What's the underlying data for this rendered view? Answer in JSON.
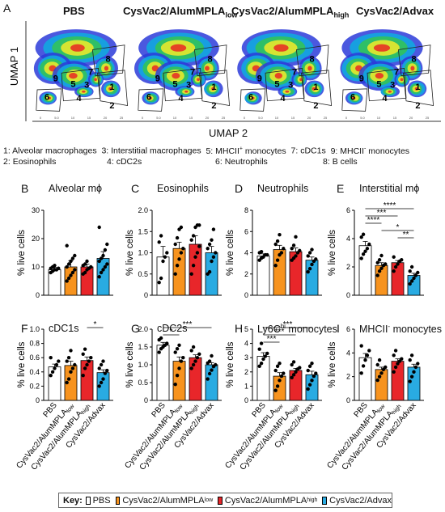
{
  "figure": {
    "panel_a_letter": "A",
    "umap": {
      "y_label": "UMAP 1",
      "x_label": "UMAP 2",
      "titles": [
        {
          "main": "PBS",
          "sub": ""
        },
        {
          "main": "CysVac2/AlumMPLA",
          "sub": "low"
        },
        {
          "main": "CysVac2/AlumMPLA",
          "sub": "high"
        },
        {
          "main": "CysVac2/Advax",
          "sub": ""
        }
      ],
      "cluster_labels": [
        "1",
        "2",
        "3",
        "4",
        "5",
        "6",
        "7",
        "8",
        "9"
      ],
      "tick_labels": [
        "0",
        "5.0",
        "10",
        "15",
        "20",
        "25"
      ]
    },
    "cluster_legend": {
      "row1": [
        {
          "num": "1:",
          "text": "Alveolar macrophages"
        },
        {
          "num": "3:",
          "text": "Interstitial macrophages"
        },
        {
          "num": "5:",
          "text": "MHCII",
          "sup": "+",
          "after": " monocytes"
        },
        {
          "num": "7:",
          "text": "cDC1s"
        },
        {
          "num": "9:",
          "text": "MHCII",
          "sup": "-",
          "after": " monocytes"
        }
      ],
      "row2": [
        {
          "num": "2:",
          "text": "Eosinophils"
        },
        {
          "num": "4:",
          "text": "cDC2s"
        },
        {
          "num": "6:",
          "text": "Neutrophils"
        },
        {
          "num": "8:",
          "text": "B cells"
        }
      ]
    },
    "key": {
      "label": "Key:",
      "entries": [
        {
          "main": "PBS",
          "sub": "",
          "color": "#ffffff"
        },
        {
          "main": "CysVac2/AlumMPLA",
          "sub": "low",
          "color": "#f7931e"
        },
        {
          "main": "CysVac2/AlumMPLA",
          "sub": "high",
          "color": "#e8262a"
        },
        {
          "main": "CysVac2/Advax",
          "sub": "",
          "color": "#29abe2"
        }
      ]
    },
    "colors": {
      "pbs": "#ffffff",
      "alum_low": "#f7931e",
      "alum_high": "#e8262a",
      "advax": "#29abe2"
    }
  },
  "chart_data": [
    {
      "letter": "B",
      "title": "Alveolar mϕ",
      "type": "bar",
      "ylabel": "% live cells",
      "ylim": [
        0,
        30
      ],
      "yticks": [
        "0",
        "10",
        "20",
        "30"
      ],
      "categories": [
        "PBS",
        "CysVac2/AlumMPLA_low",
        "CysVac2/AlumMPLA_high",
        "CysVac2/Advax"
      ],
      "values": [
        9,
        10,
        10,
        13
      ],
      "errors": [
        0.8,
        2.2,
        1,
        2.4
      ],
      "points": [
        [
          8,
          8.5,
          9,
          9,
          9.5,
          9.5,
          10,
          10.5
        ],
        [
          5,
          6,
          7,
          8,
          9,
          10,
          11,
          12,
          13,
          14,
          17.5
        ],
        [
          7.5,
          8,
          9,
          9.5,
          10,
          10.5,
          11,
          12
        ],
        [
          6.5,
          8,
          9,
          10,
          11,
          12,
          13,
          14,
          16,
          18,
          24
        ]
      ],
      "significance": []
    },
    {
      "letter": "C",
      "title": "Eosinophils",
      "type": "bar",
      "ylabel": "% live cells",
      "ylim": [
        0,
        2.0
      ],
      "yticks": [
        "0",
        "0.5",
        "1.0",
        "1.5",
        "2.0"
      ],
      "categories": [
        "PBS",
        "CysVac2/AlumMPLA_low",
        "CysVac2/AlumMPLA_high",
        "CysVac2/Advax"
      ],
      "values": [
        0.9,
        1.1,
        1.2,
        1.0
      ],
      "errors": [
        0.25,
        0.15,
        0.2,
        0.15
      ],
      "points": [
        [
          0.3,
          0.4,
          0.8,
          0.9,
          1.0,
          1.25,
          1.4
        ],
        [
          0.5,
          0.7,
          0.85,
          1.0,
          1.1,
          1.2,
          1.35,
          1.55,
          1.6
        ],
        [
          0.5,
          0.7,
          0.9,
          1.0,
          1.15,
          1.3,
          1.4,
          1.6,
          1.65,
          1.65
        ],
        [
          0.5,
          0.55,
          0.8,
          0.9,
          1.0,
          1.1,
          1.2,
          1.3,
          1.55
        ]
      ],
      "significance": []
    },
    {
      "letter": "D",
      "title": "Neutrophils",
      "type": "bar",
      "ylabel": "% live cells",
      "ylim": [
        0,
        8
      ],
      "yticks": [
        "0",
        "2",
        "4",
        "6",
        "8"
      ],
      "categories": [
        "PBS",
        "CysVac2/AlumMPLA_low",
        "CysVac2/AlumMPLA_high",
        "CysVac2/Advax"
      ],
      "values": [
        3.7,
        4.3,
        4.1,
        3.3
      ],
      "errors": [
        0.2,
        0.4,
        0.35,
        0.3
      ],
      "points": [
        [
          3.3,
          3.5,
          3.6,
          3.8,
          3.8,
          4.0,
          4.1
        ],
        [
          2.8,
          3.3,
          3.8,
          4.0,
          4.4,
          4.8,
          5.1,
          5.7
        ],
        [
          3.3,
          3.5,
          3.7,
          4.0,
          4.2,
          4.4,
          4.7,
          5.5
        ],
        [
          2.2,
          2.5,
          2.9,
          3.2,
          3.4,
          3.7,
          4.0,
          4.3
        ]
      ],
      "significance": []
    },
    {
      "letter": "E",
      "title": "Interstitial mϕ",
      "type": "bar",
      "ylabel": "% live cells",
      "ylim": [
        0,
        6
      ],
      "yticks": [
        "0",
        "2",
        "4",
        "6"
      ],
      "categories": [
        "PBS",
        "CysVac2/AlumMPLA_low",
        "CysVac2/AlumMPLA_high",
        "CysVac2/Advax"
      ],
      "values": [
        3.5,
        2.1,
        2.3,
        1.4
      ],
      "errors": [
        0.3,
        0.2,
        0.15,
        0.15
      ],
      "points": [
        [
          2.6,
          2.9,
          3.1,
          3.3,
          3.6,
          4.1,
          4.3
        ],
        [
          1.4,
          1.7,
          1.9,
          2.1,
          2.2,
          2.3,
          2.5,
          2.8
        ],
        [
          1.7,
          2.0,
          2.2,
          2.4,
          2.5,
          2.7
        ],
        [
          0.8,
          1.0,
          1.2,
          1.4,
          1.6,
          1.7,
          2.0
        ]
      ],
      "significance": [
        {
          "from": 0,
          "to": 3,
          "label": "****"
        },
        {
          "from": 0,
          "to": 2,
          "label": "***"
        },
        {
          "from": 0,
          "to": 1,
          "label": "****"
        },
        {
          "from": 1,
          "to": 3,
          "label": "*"
        },
        {
          "from": 2,
          "to": 3,
          "label": "**"
        }
      ]
    },
    {
      "letter": "F",
      "title": "cDC1s",
      "type": "bar",
      "ylabel": "% live cells",
      "ylim": [
        0,
        1.0
      ],
      "yticks": [
        "0",
        "0.2",
        "0.4",
        "0.6",
        "0.8",
        "1.0"
      ],
      "categories": [
        "PBS",
        "CysVac2/AlumMPLA_low",
        "CysVac2/AlumMPLA_high",
        "CysVac2/Advax"
      ],
      "values": [
        0.47,
        0.49,
        0.56,
        0.39
      ],
      "errors": [
        0.04,
        0.06,
        0.05,
        0.04
      ],
      "points": [
        [
          0.35,
          0.4,
          0.45,
          0.5,
          0.55,
          0.6
        ],
        [
          0.25,
          0.3,
          0.4,
          0.45,
          0.5,
          0.55,
          0.6,
          0.7
        ],
        [
          0.35,
          0.45,
          0.5,
          0.55,
          0.6,
          0.65,
          0.72
        ],
        [
          0.2,
          0.25,
          0.3,
          0.38,
          0.42,
          0.45,
          0.5,
          0.55
        ]
      ],
      "significance": [
        {
          "from": 2,
          "to": 3,
          "label": "*"
        }
      ]
    },
    {
      "letter": "G",
      "title": "cDC2s",
      "type": "bar",
      "ylabel": "% live cells",
      "ylim": [
        0,
        2.0
      ],
      "yticks": [
        "0",
        "0.5",
        "1.0",
        "1.5",
        "2.0"
      ],
      "categories": [
        "PBS",
        "CysVac2/AlumMPLA_low",
        "CysVac2/AlumMPLA_high",
        "CysVac2/Advax"
      ],
      "values": [
        1.55,
        1.1,
        1.2,
        1.0
      ],
      "errors": [
        0.08,
        0.12,
        0.08,
        0.06
      ],
      "points": [
        [
          1.35,
          1.45,
          1.5,
          1.55,
          1.6,
          1.7,
          1.75
        ],
        [
          0.45,
          0.7,
          0.9,
          1.1,
          1.2,
          1.35,
          1.45,
          1.55
        ],
        [
          0.9,
          1.0,
          1.1,
          1.2,
          1.3,
          1.4,
          1.5
        ],
        [
          0.6,
          0.75,
          0.85,
          0.95,
          1.0,
          1.05,
          1.1,
          1.25
        ]
      ],
      "significance": [
        {
          "from": 0,
          "to": 3,
          "label": "***"
        },
        {
          "from": 0,
          "to": 1,
          "label": "*"
        }
      ]
    },
    {
      "letter": "H",
      "title": "Ly6C",
      "title_sup": "hi",
      "title_after": " monocytes",
      "type": "bar",
      "ylabel": "% live cells",
      "ylim": [
        0,
        5
      ],
      "yticks": [
        "0",
        "1",
        "2",
        "3",
        "4",
        "5"
      ],
      "categories": [
        "PBS",
        "CysVac2/AlumMPLA_low",
        "CysVac2/AlumMPLA_high",
        "CysVac2/Advax"
      ],
      "values": [
        3.1,
        1.7,
        2.1,
        1.8
      ],
      "errors": [
        0.25,
        0.25,
        0.15,
        0.25
      ],
      "points": [
        [
          2.4,
          2.6,
          2.9,
          3.1,
          3.3,
          3.6,
          4.0
        ],
        [
          0.7,
          1.0,
          1.4,
          1.7,
          1.9,
          2.1,
          2.4,
          2.6
        ],
        [
          1.6,
          1.8,
          2.0,
          2.2,
          2.3,
          2.5,
          2.7
        ],
        [
          0.8,
          1.1,
          1.4,
          1.7,
          1.9,
          2.1,
          2.4,
          2.6
        ]
      ],
      "significance": [
        {
          "from": 0,
          "to": 3,
          "label": "***"
        },
        {
          "from": 0,
          "to": 2,
          "label": "***"
        },
        {
          "from": 0,
          "to": 1,
          "label": "***"
        }
      ]
    },
    {
      "letter": "I",
      "title": "MHCII",
      "title_sup": "-",
      "title_after": " monocytes",
      "type": "bar",
      "ylabel": "% live cells",
      "ylim": [
        0,
        6
      ],
      "yticks": [
        "0",
        "2",
        "4",
        "6"
      ],
      "categories": [
        "PBS",
        "CysVac2/AlumMPLA_low",
        "CysVac2/AlumMPLA_high",
        "CysVac2/Advax"
      ],
      "values": [
        3.6,
        2.6,
        3.3,
        2.8
      ],
      "errors": [
        0.35,
        0.2,
        0.2,
        0.25
      ],
      "points": [
        [
          2.3,
          2.9,
          3.4,
          3.8,
          4.2,
          4.6
        ],
        [
          1.7,
          2.0,
          2.3,
          2.6,
          2.8,
          3.0,
          3.4
        ],
        [
          2.4,
          2.8,
          3.1,
          3.3,
          3.5,
          3.8,
          4.2
        ],
        [
          1.6,
          2.0,
          2.4,
          2.8,
          3.1,
          3.4,
          3.8
        ]
      ],
      "significance": []
    }
  ]
}
